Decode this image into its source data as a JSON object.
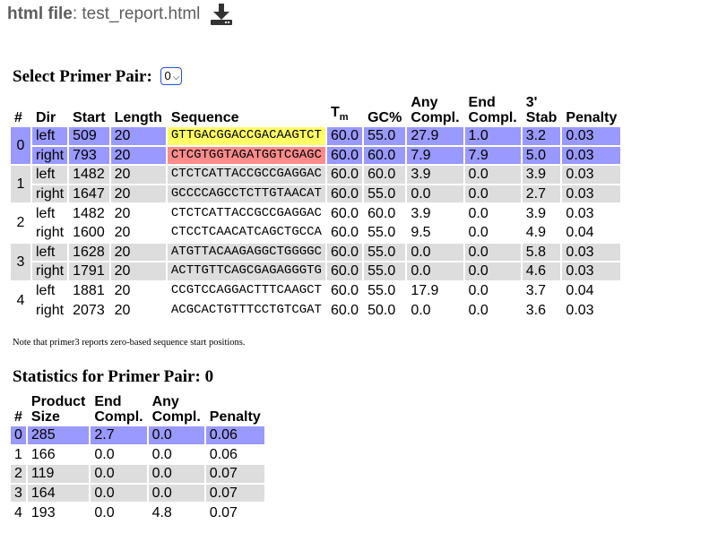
{
  "header": {
    "label": "html file",
    "separator": ":",
    "filename": "test_report.html"
  },
  "select": {
    "title": "Select Primer Pair:",
    "value": "0"
  },
  "primer_table": {
    "headers": {
      "num": "#",
      "dir": "Dir",
      "start": "Start",
      "length": "Length",
      "sequence": "Sequence",
      "tm_main": "T",
      "tm_sub": "m",
      "gc": "GC%",
      "any_compl": "Any Compl.",
      "end_compl": "End Compl.",
      "stab": "3' Stab",
      "penalty": "Penalty"
    },
    "pairs": [
      {
        "num": "0",
        "style": "sel",
        "rows": [
          {
            "dir": "left",
            "start": "509",
            "length": "20",
            "sequence": "GTTGACGGACCGACAAGTCT",
            "tm": "60.0",
            "gc": "55.0",
            "any": "27.9",
            "end": "1.0",
            "stab": "3.2",
            "penalty": "0.03",
            "hl": "hl-left"
          },
          {
            "dir": "right",
            "start": "793",
            "length": "20",
            "sequence": "CTCGTGGTAGATGGTCGAGC",
            "tm": "60.0",
            "gc": "60.0",
            "any": "7.9",
            "end": "7.9",
            "stab": "5.0",
            "penalty": "0.03",
            "hl": "hl-right"
          }
        ]
      },
      {
        "num": "1",
        "style": "gray",
        "rows": [
          {
            "dir": "left",
            "start": "1482",
            "length": "20",
            "sequence": "CTCTCATTACCGCCGAGGAC",
            "tm": "60.0",
            "gc": "60.0",
            "any": "3.9",
            "end": "0.0",
            "stab": "3.9",
            "penalty": "0.03"
          },
          {
            "dir": "right",
            "start": "1647",
            "length": "20",
            "sequence": "GCCCCAGCCTCTTGTAACAT",
            "tm": "60.0",
            "gc": "55.0",
            "any": "0.0",
            "end": "0.0",
            "stab": "2.7",
            "penalty": "0.03"
          }
        ]
      },
      {
        "num": "2",
        "style": "plain",
        "rows": [
          {
            "dir": "left",
            "start": "1482",
            "length": "20",
            "sequence": "CTCTCATTACCGCCGAGGAC",
            "tm": "60.0",
            "gc": "60.0",
            "any": "3.9",
            "end": "0.0",
            "stab": "3.9",
            "penalty": "0.03"
          },
          {
            "dir": "right",
            "start": "1600",
            "length": "20",
            "sequence": "CTCCTCAACATCAGCTGCCA",
            "tm": "60.0",
            "gc": "55.0",
            "any": "9.5",
            "end": "0.0",
            "stab": "4.9",
            "penalty": "0.04"
          }
        ]
      },
      {
        "num": "3",
        "style": "gray",
        "rows": [
          {
            "dir": "left",
            "start": "1628",
            "length": "20",
            "sequence": "ATGTTACAAGAGGCTGGGGC",
            "tm": "60.0",
            "gc": "55.0",
            "any": "0.0",
            "end": "0.0",
            "stab": "5.8",
            "penalty": "0.03"
          },
          {
            "dir": "right",
            "start": "1791",
            "length": "20",
            "sequence": "ACTTGTTCAGCGAGAGGGTG",
            "tm": "60.0",
            "gc": "55.0",
            "any": "0.0",
            "end": "0.0",
            "stab": "4.6",
            "penalty": "0.03"
          }
        ]
      },
      {
        "num": "4",
        "style": "plain",
        "rows": [
          {
            "dir": "left",
            "start": "1881",
            "length": "20",
            "sequence": "CCGTCCAGGACTTTCAAGCT",
            "tm": "60.0",
            "gc": "55.0",
            "any": "17.9",
            "end": "0.0",
            "stab": "3.7",
            "penalty": "0.04"
          },
          {
            "dir": "right",
            "start": "2073",
            "length": "20",
            "sequence": "ACGCACTGTTTCCTGTCGAT",
            "tm": "60.0",
            "gc": "50.0",
            "any": "0.0",
            "end": "0.0",
            "stab": "3.6",
            "penalty": "0.03"
          }
        ]
      }
    ]
  },
  "note": "Note that primer3 reports zero-based sequence start positions.",
  "stats": {
    "title_prefix": "Statistics for Primer Pair:",
    "title_value": "0",
    "headers": {
      "num": "#",
      "product_size": "Product Size",
      "end_compl": "End Compl.",
      "any_compl": "Any Compl.",
      "penalty": "Penalty"
    },
    "rows": [
      {
        "num": "0",
        "product_size": "285",
        "end": "2.7",
        "any": "0.0",
        "penalty": "0.06",
        "style": "sel"
      },
      {
        "num": "1",
        "product_size": "166",
        "end": "0.0",
        "any": "0.0",
        "penalty": "0.06",
        "style": "plain"
      },
      {
        "num": "2",
        "product_size": "119",
        "end": "0.0",
        "any": "0.0",
        "penalty": "0.07",
        "style": "gray"
      },
      {
        "num": "3",
        "product_size": "164",
        "end": "0.0",
        "any": "0.0",
        "penalty": "0.07",
        "style": "gray"
      },
      {
        "num": "4",
        "product_size": "193",
        "end": "0.0",
        "any": "4.8",
        "penalty": "0.07",
        "style": "plain"
      }
    ]
  },
  "colors": {
    "selected": "#9999ff",
    "gray": "#dddddd",
    "left_highlight": "#ffff66",
    "right_highlight": "#ff8c8c"
  },
  "icons": {
    "download": "download-icon",
    "select_chevron": "chevron-down-icon"
  }
}
